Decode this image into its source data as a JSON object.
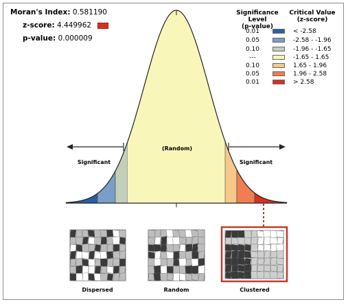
{
  "stats": {
    "moran_label": "Moran's Index:",
    "moran_value": "0.581190",
    "z_label": "z-score:",
    "z_value": "4.449962",
    "p_label": "p-value:",
    "p_value": "0.000009"
  },
  "legend": {
    "sig_header_line1": "Significance Level",
    "sig_header_line2": "(p-value)",
    "crit_header_line1": "Critical Value",
    "crit_header_line2": "(z-score)",
    "rows": [
      {
        "p": "0.01",
        "z": "< -2.58",
        "color": "#2b5fa4"
      },
      {
        "p": "0.05",
        "z": "-2.58 - -1.96",
        "color": "#7a9ec8"
      },
      {
        "p": "0.10",
        "z": "-1.96 - -1.65",
        "color": "#c3cfb9"
      },
      {
        "p": "---",
        "z": "-1.65 - 1.65",
        "color": "#f8f6b8"
      },
      {
        "p": "0.10",
        "z": "1.65 - 1.96",
        "color": "#f6c88a"
      },
      {
        "p": "0.05",
        "z": "1.96 - 2.58",
        "color": "#ef7e52"
      },
      {
        "p": "0.01",
        "z": "> 2.58",
        "color": "#d7301f"
      }
    ]
  },
  "curve": {
    "random_label": "(Random)",
    "sig_left_label": "Significant",
    "sig_right_label": "Significant"
  },
  "patterns": {
    "dispersed": "Dispersed",
    "random": "Random",
    "clustered": "Clustered"
  },
  "colors": {
    "z_swatch": "#d7301f",
    "highlight_border": "#c0392b",
    "connector": "#b03a2e"
  }
}
